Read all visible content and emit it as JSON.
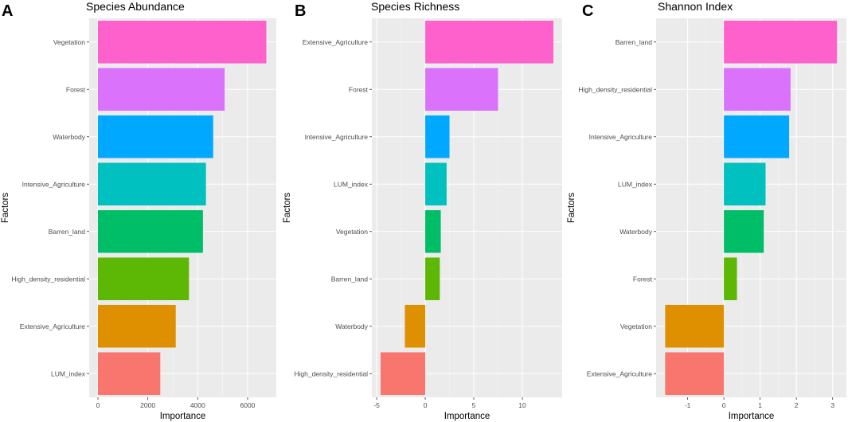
{
  "chart_data": [
    {
      "type": "bar",
      "orientation": "horizontal",
      "panel": "A",
      "title": "Species Abundance",
      "xlabel": "Importance",
      "ylabel": "Factors",
      "categories": [
        "Vegetation",
        "Forest",
        "Waterbody",
        "Intensive_Agriculture",
        "Barren_land",
        "High_density_residential",
        "Extensive_Agriculture",
        "LUM_index"
      ],
      "values": [
        6750,
        5080,
        4620,
        4330,
        4210,
        3650,
        3120,
        2500
      ],
      "colors": [
        "#FF61CC",
        "#DB72FB",
        "#00A9FF",
        "#00C0C0",
        "#00BE67",
        "#5DB805",
        "#DF9000",
        "#F8766D"
      ],
      "xlim": [
        -350,
        7150
      ],
      "xticks": [
        0,
        2000,
        4000,
        6000
      ],
      "xticklabels": [
        "0",
        "2000",
        "4000",
        "6000"
      ],
      "grid": true
    },
    {
      "type": "bar",
      "orientation": "horizontal",
      "panel": "B",
      "title": "Species Richness",
      "xlabel": "Importance",
      "ylabel": "Factors",
      "categories": [
        "Extensive_Agriculture",
        "Forest",
        "Intensive_Agriculture",
        "LUM_index",
        "Vegetation",
        "Barren_land",
        "Waterbody",
        "High_density_residential"
      ],
      "values": [
        13.2,
        7.5,
        2.5,
        2.2,
        1.6,
        1.5,
        -2.1,
        -4.6
      ],
      "colors": [
        "#FF61CC",
        "#DB72FB",
        "#00A9FF",
        "#00C0C0",
        "#00BE67",
        "#5DB805",
        "#DF9000",
        "#F8766D"
      ],
      "xlim": [
        -5.5,
        14.1
      ],
      "xticks": [
        -5,
        0,
        5,
        10
      ],
      "xticklabels": [
        "-5",
        "0",
        "5",
        "10"
      ],
      "grid": true
    },
    {
      "type": "bar",
      "orientation": "horizontal",
      "panel": "C",
      "title": "Shannon Index",
      "xlabel": "Importance",
      "ylabel": "Factors",
      "categories": [
        "Barren_land",
        "High_density_residential",
        "Intensive_Agriculture",
        "LUM_index",
        "Waterbody",
        "Forest",
        "Vegetation",
        "Extensive_Agriculture"
      ],
      "values": [
        3.12,
        1.84,
        1.8,
        1.15,
        1.1,
        0.36,
        -1.62,
        -1.62
      ],
      "colors": [
        "#FF61CC",
        "#DB72FB",
        "#00A9FF",
        "#00C0C0",
        "#00BE67",
        "#5DB805",
        "#DF9000",
        "#F8766D"
      ],
      "xlim": [
        -1.87,
        3.38
      ],
      "xticks": [
        -1,
        0,
        1,
        2,
        3
      ],
      "xticklabels": [
        "-1",
        "0",
        "1",
        "2",
        "3"
      ],
      "grid": true
    }
  ]
}
